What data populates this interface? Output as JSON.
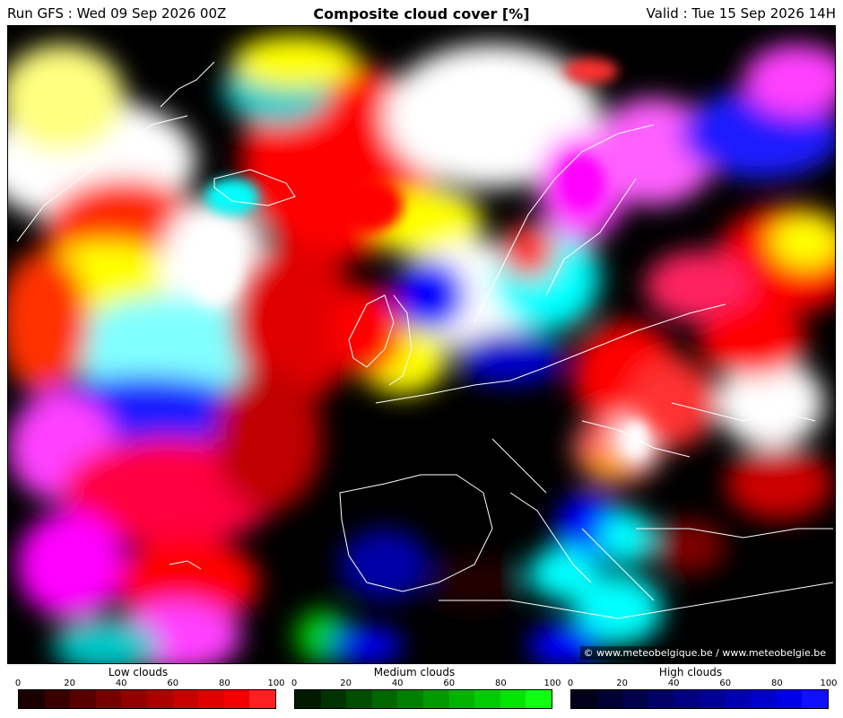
{
  "header": {
    "run": "Run GFS : Wed 09 Sep 2026 00Z",
    "title": "Composite cloud cover [%]",
    "valid": "Valid : Tue 15 Sep 2026 14H"
  },
  "copyright": "© www.meteobelgique.be / www.meteobelgie.be",
  "legends": [
    {
      "id": "low",
      "title": "Low clouds",
      "ticks": [
        "0",
        "20",
        "40",
        "60",
        "80",
        "100"
      ],
      "colors": [
        "#1a0000",
        "#3a0000",
        "#580000",
        "#750000",
        "#920000",
        "#ad0000",
        "#c80000",
        "#e10000",
        "#f40000",
        "#ff2020"
      ]
    },
    {
      "id": "medium",
      "title": "Medium clouds",
      "ticks": [
        "0",
        "20",
        "40",
        "60",
        "80",
        "100"
      ],
      "colors": [
        "#001a00",
        "#003300",
        "#004d00",
        "#006600",
        "#008000",
        "#009900",
        "#00b300",
        "#00cc00",
        "#00e600",
        "#10ff10"
      ]
    },
    {
      "id": "high",
      "title": "High clouds",
      "ticks": [
        "0",
        "20",
        "40",
        "60",
        "80",
        "100"
      ],
      "colors": [
        "#00001a",
        "#000033",
        "#00004d",
        "#000066",
        "#000080",
        "#000099",
        "#0000b3",
        "#0000cc",
        "#0000e6",
        "#1010ff"
      ]
    }
  ]
}
